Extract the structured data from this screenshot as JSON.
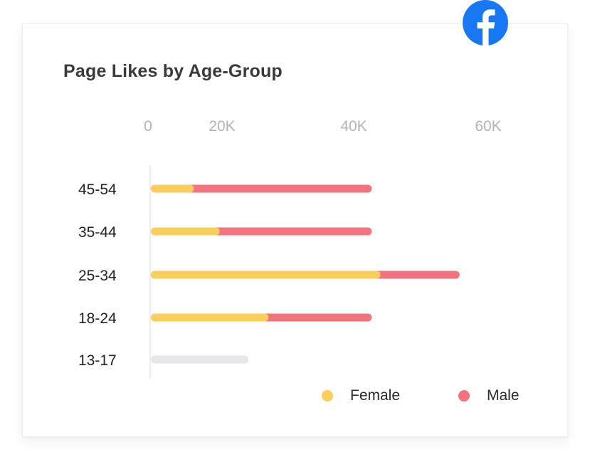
{
  "chart_data": {
    "type": "bar",
    "orientation": "horizontal",
    "stacked": true,
    "title": "Page Likes by Age-Group",
    "x_ticks": [
      "0",
      "20K",
      "40K",
      "60K"
    ],
    "xlim": [
      0,
      62000
    ],
    "categories": [
      "45-54",
      "35-44",
      "25-34",
      "18-24",
      "13-17"
    ],
    "series": [
      {
        "name": "Female",
        "color": "#f9ce5a",
        "values": [
          7500,
          12000,
          40000,
          20500,
          0
        ]
      },
      {
        "name": "Male",
        "color": "#f3747f",
        "values": [
          31000,
          26500,
          13800,
          18000,
          0
        ]
      }
    ],
    "placeholder_bar": {
      "category": "13-17",
      "value": 17000,
      "color": "#e6e6ec"
    },
    "legend_position": "bottom-right",
    "grid": false
  },
  "brand": {
    "icon": "facebook-icon",
    "color": "#1877f2"
  }
}
